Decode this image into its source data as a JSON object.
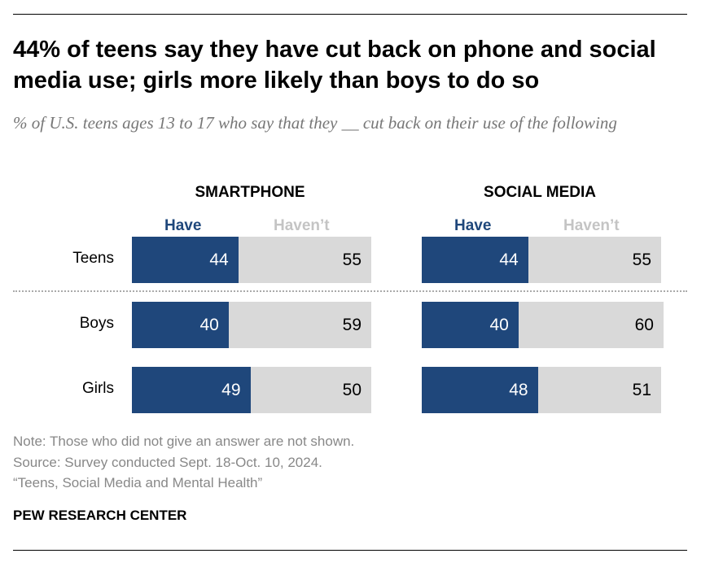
{
  "title": "44% of teens say they have cut back on phone and social media use; girls more likely than boys to do so",
  "subtitle": "% of U.S. teens ages 13 to 17 who say that they __ cut back on their use of the following",
  "notes": [
    "Note: Those who did not give an answer are not shown.",
    "Source: Survey conducted Sept. 18-Oct. 10, 2024.",
    "“Teens, Social Media and Mental Health”"
  ],
  "brand": "PEW RESEARCH CENTER",
  "colors": {
    "have": "#1f477b",
    "havent": "#d9d9d9"
  },
  "chart_data": [
    {
      "type": "bar",
      "stacked": true,
      "orientation": "horizontal",
      "title": "SMARTPHONE",
      "categories": [
        "Teens",
        "Boys",
        "Girls"
      ],
      "series": [
        {
          "name": "Have",
          "values": [
            44,
            40,
            49
          ]
        },
        {
          "name": "Haven’t",
          "values": [
            55,
            59,
            50
          ]
        }
      ]
    },
    {
      "type": "bar",
      "stacked": true,
      "orientation": "horizontal",
      "title": "SOCIAL MEDIA",
      "categories": [
        "Teens",
        "Boys",
        "Girls"
      ],
      "series": [
        {
          "name": "Have",
          "values": [
            44,
            40,
            48
          ]
        },
        {
          "name": "Haven’t",
          "values": [
            55,
            60,
            51
          ]
        }
      ]
    }
  ]
}
